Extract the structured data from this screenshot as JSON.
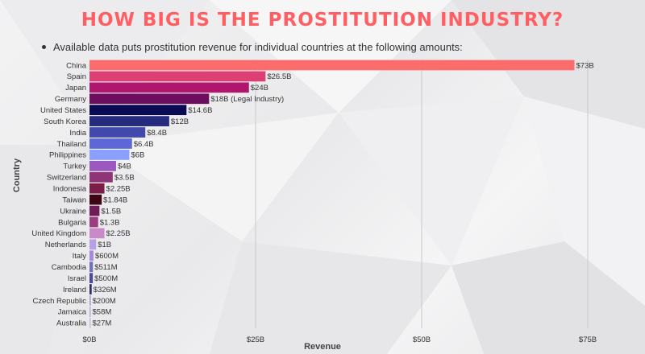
{
  "page": {
    "title": "HOW BIG IS THE PROSTITUTION INDUSTRY?",
    "bullet": "Available data puts prostitution revenue for individual countries at the following amounts:",
    "title_color": "#ff5f63"
  },
  "chart_data": {
    "type": "bar",
    "orientation": "horizontal",
    "xlabel": "Revenue",
    "ylabel": "Country",
    "xlim": [
      0,
      75
    ],
    "xticks": [
      0,
      25,
      50,
      75
    ],
    "xtick_labels": [
      "$0B",
      "$25B",
      "$50B",
      "$75B"
    ],
    "grid": "vertical",
    "unit": "billion USD",
    "bars": [
      {
        "category": "China",
        "value": 73,
        "label": "$73B",
        "color": "#fc6c6c"
      },
      {
        "category": "Spain",
        "value": 26.5,
        "label": "$26.5B",
        "color": "#de3f72"
      },
      {
        "category": "Japan",
        "value": 24,
        "label": "$24B",
        "color": "#b0166e"
      },
      {
        "category": "Germany",
        "value": 18,
        "label": "$18B (Legal Industry)",
        "color": "#6e0c60"
      },
      {
        "category": "United States",
        "value": 14.6,
        "label": "$14.6B",
        "color": "#0b0b55"
      },
      {
        "category": "South Korea",
        "value": 12,
        "label": "$12B",
        "color": "#262b7e"
      },
      {
        "category": "India",
        "value": 8.4,
        "label": "$8.4B",
        "color": "#4249ac"
      },
      {
        "category": "Thailand",
        "value": 6.4,
        "label": "$6.4B",
        "color": "#5d67d6"
      },
      {
        "category": "Philippines",
        "value": 6,
        "label": "$6B",
        "color": "#8aa0ff"
      },
      {
        "category": "Turkey",
        "value": 4,
        "label": "$4B",
        "color": "#9b59bf"
      },
      {
        "category": "Switzerland",
        "value": 3.5,
        "label": "$3.5B",
        "color": "#8f3477"
      },
      {
        "category": "Indonesia",
        "value": 2.25,
        "label": "$2.25B",
        "color": "#7c1d48"
      },
      {
        "category": "Taiwan",
        "value": 1.84,
        "label": "$1.84B",
        "color": "#3e0612"
      },
      {
        "category": "Ukraine",
        "value": 1.5,
        "label": "$1.5B",
        "color": "#6e1d55"
      },
      {
        "category": "Bulgaria",
        "value": 1.3,
        "label": "$1.3B",
        "color": "#9c3c81"
      },
      {
        "category": "United Kingdom",
        "value": 2.25,
        "label": "$2.25B",
        "color": "#c98ac8"
      },
      {
        "category": "Netherlands",
        "value": 1,
        "label": "$1B",
        "color": "#b7a0e6"
      },
      {
        "category": "Italy",
        "value": 0.6,
        "label": "$600M",
        "color": "#a58ae0"
      },
      {
        "category": "Cambodia",
        "value": 0.511,
        "label": "$511M",
        "color": "#7070c0"
      },
      {
        "category": "Israel",
        "value": 0.5,
        "label": "$500M",
        "color": "#4b4b9a"
      },
      {
        "category": "Ireland",
        "value": 0.326,
        "label": "$326M",
        "color": "#2c2c6e"
      },
      {
        "category": "Czech Republic",
        "value": 0.2,
        "label": "$200M",
        "color": "#a0a0d0"
      },
      {
        "category": "Jamaica",
        "value": 0.058,
        "label": "$58M",
        "color": "#b0b0d8"
      },
      {
        "category": "Australia",
        "value": 0.027,
        "label": "$27M",
        "color": "#c0c0e0"
      }
    ]
  }
}
